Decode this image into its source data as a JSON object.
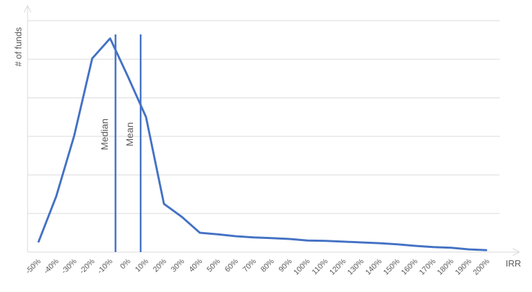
{
  "chart_data": {
    "type": "line",
    "y_label": "# of funds",
    "x_label": "IRR",
    "x": [
      -50,
      -40,
      -30,
      -20,
      -10,
      0,
      10,
      20,
      30,
      40,
      50,
      60,
      70,
      80,
      90,
      100,
      110,
      120,
      130,
      140,
      150,
      160,
      170,
      180,
      190,
      200
    ],
    "values": [
      0.25,
      1.45,
      3.02,
      5.02,
      5.54,
      4.54,
      3.5,
      1.25,
      0.91,
      0.5,
      0.46,
      0.41,
      0.38,
      0.36,
      0.34,
      0.3,
      0.29,
      0.27,
      0.25,
      0.23,
      0.2,
      0.16,
      0.13,
      0.11,
      0.07,
      0.05
    ],
    "color": "#4472c4",
    "xlim": [
      -56,
      207
    ],
    "xticks": [
      {
        "value": -50,
        "label": "-50%"
      },
      {
        "value": -40,
        "label": "-40%"
      },
      {
        "value": -30,
        "label": "-30%"
      },
      {
        "value": -20,
        "label": "-20%"
      },
      {
        "value": -10,
        "label": "-10%"
      },
      {
        "value": 0,
        "label": "0%"
      },
      {
        "value": 10,
        "label": "10%"
      },
      {
        "value": 20,
        "label": "20%"
      },
      {
        "value": 30,
        "label": "30%"
      },
      {
        "value": 40,
        "label": "40%"
      },
      {
        "value": 50,
        "label": "50%"
      },
      {
        "value": 60,
        "label": "60%"
      },
      {
        "value": 70,
        "label": "70%"
      },
      {
        "value": 80,
        "label": "80%"
      },
      {
        "value": 90,
        "label": "90%"
      },
      {
        "value": 100,
        "label": "100%"
      },
      {
        "value": 110,
        "label": "110%"
      },
      {
        "value": 120,
        "label": "120%"
      },
      {
        "value": 130,
        "label": "130%"
      },
      {
        "value": 140,
        "label": "140%"
      },
      {
        "value": 150,
        "label": "150%"
      },
      {
        "value": 160,
        "label": "160%"
      },
      {
        "value": 170,
        "label": "170%"
      },
      {
        "value": 180,
        "label": "180%"
      },
      {
        "value": 190,
        "label": "190%"
      },
      {
        "value": 200,
        "label": "200%"
      }
    ],
    "ylim": [
      0,
      6
    ],
    "yticks": [
      0,
      1,
      2,
      3,
      4,
      5,
      6
    ],
    "grid": true,
    "annotations": [
      {
        "label": "Median",
        "x": -7
      },
      {
        "label": "Mean",
        "x": 7
      }
    ]
  }
}
